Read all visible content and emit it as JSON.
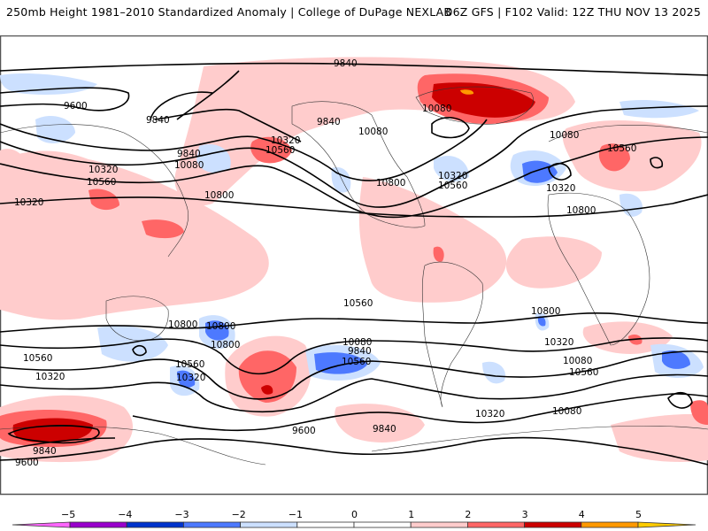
{
  "header": {
    "title_left": "250mb Height 1981–2010 Standardized Anomaly | College of DuPage NEXLAB",
    "title_right": "06Z GFS | F102 Valid: 12Z THU NOV 13 2025"
  },
  "map": {
    "field": "250mb Height",
    "contour_units": "m",
    "contour_interval": 240,
    "contour_levels": [
      9600,
      9840,
      10080,
      10320,
      10560,
      10800
    ],
    "contour_labels": [
      {
        "text": "9840",
        "region": "north-pacific-arctic"
      },
      {
        "text": "9600",
        "region": "siberia"
      },
      {
        "text": "9840",
        "region": "bering-sea"
      },
      {
        "text": "9840",
        "region": "alaska"
      },
      {
        "text": "10080",
        "region": "canada"
      },
      {
        "text": "10080",
        "region": "hudson-bay"
      },
      {
        "text": "10080",
        "region": "north-atlantic"
      },
      {
        "text": "10560",
        "region": "europe"
      },
      {
        "text": "10320",
        "region": "north-atlantic-low"
      },
      {
        "text": "10320",
        "region": "eastern-us"
      },
      {
        "text": "10560",
        "region": "eastern-us"
      },
      {
        "text": "10800",
        "region": "southern-us"
      },
      {
        "text": "10800",
        "region": "north-africa"
      },
      {
        "text": "9840",
        "region": "kamchatka"
      },
      {
        "text": "10080",
        "region": "japan"
      },
      {
        "text": "10320",
        "region": "japan"
      },
      {
        "text": "10560",
        "region": "japan"
      },
      {
        "text": "10800",
        "region": "east-pacific"
      },
      {
        "text": "10320",
        "region": "central-pacific"
      },
      {
        "text": "10560",
        "region": "central-pacific"
      },
      {
        "text": "10320",
        "region": "central-asia"
      },
      {
        "text": "10560",
        "region": "central-asia"
      },
      {
        "text": "10800",
        "region": "india"
      },
      {
        "text": "10800",
        "region": "south-pacific"
      },
      {
        "text": "10800",
        "region": "south-atlantic"
      },
      {
        "text": "10800",
        "region": "australia"
      },
      {
        "text": "10560",
        "region": "tasman-sea"
      },
      {
        "text": "10320",
        "region": "tasman-sea"
      },
      {
        "text": "10560",
        "region": "southern-indian-ocean"
      },
      {
        "text": "10320",
        "region": "southern-indian-ocean"
      },
      {
        "text": "10080",
        "region": "new-zealand"
      },
      {
        "text": "9840",
        "region": "new-zealand"
      },
      {
        "text": "10560",
        "region": "south-pacific-mid"
      },
      {
        "text": "10320",
        "region": "south-pacific-mid"
      },
      {
        "text": "10080",
        "region": "south-pacific-mid"
      },
      {
        "text": "10560",
        "region": "south-atlantic-mid"
      },
      {
        "text": "10320",
        "region": "south-atlantic-mid"
      },
      {
        "text": "10080",
        "region": "south-atlantic-mid"
      },
      {
        "text": "9600",
        "region": "southern-ocean-atlantic"
      },
      {
        "text": "9840",
        "region": "southern-ocean-indian"
      },
      {
        "text": "9600",
        "region": "antarctica-pacific"
      },
      {
        "text": "9840",
        "region": "antarctica-pacific"
      },
      {
        "text": "9840",
        "region": "antarctica-indian"
      },
      {
        "text": "9600",
        "region": "antarctica-indian"
      }
    ],
    "anomaly_features": [
      {
        "region": "greenland-baffin",
        "sign": "positive",
        "max_sigma": 4
      },
      {
        "region": "northeast-pacific",
        "sign": "positive",
        "max_sigma": 2
      },
      {
        "region": "central-europe",
        "sign": "positive",
        "max_sigma": 2
      },
      {
        "region": "north-atlantic",
        "sign": "negative",
        "max_sigma": -3
      },
      {
        "region": "south-pacific",
        "sign": "positive",
        "max_sigma": 3
      },
      {
        "region": "south-pacific-east",
        "sign": "negative",
        "max_sigma": -3
      },
      {
        "region": "antarctica-indian",
        "sign": "positive",
        "max_sigma": 3
      },
      {
        "region": "tasman-sea",
        "sign": "negative",
        "max_sigma": -3
      },
      {
        "region": "southern-indian-ocean",
        "sign": "negative",
        "max_sigma": -3
      }
    ]
  },
  "colorbar": {
    "ticks": [
      "−5",
      "−4",
      "−3",
      "−2",
      "−1",
      "0",
      "1",
      "2",
      "3",
      "4",
      "5"
    ],
    "bins": [
      {
        "range": [
          -99,
          -5
        ],
        "color": "#ff66ff"
      },
      {
        "range": [
          -5,
          -4
        ],
        "color": "#9900cc"
      },
      {
        "range": [
          -4,
          -3
        ],
        "color": "#0033cc"
      },
      {
        "range": [
          -3,
          -2
        ],
        "color": "#4d79ff"
      },
      {
        "range": [
          -2,
          -1
        ],
        "color": "#cce0ff"
      },
      {
        "range": [
          -1,
          0
        ],
        "color": "#ffffff"
      },
      {
        "range": [
          0,
          1
        ],
        "color": "#ffffff"
      },
      {
        "range": [
          1,
          2
        ],
        "color": "#ffcccc"
      },
      {
        "range": [
          2,
          3
        ],
        "color": "#ff6666"
      },
      {
        "range": [
          3,
          4
        ],
        "color": "#cc0000"
      },
      {
        "range": [
          4,
          5
        ],
        "color": "#ff9900"
      },
      {
        "range": [
          5,
          99
        ],
        "color": "#ffcc00"
      }
    ]
  },
  "colors": {
    "contour": "#000000",
    "coastline": "#333333",
    "frame": "#555555"
  }
}
